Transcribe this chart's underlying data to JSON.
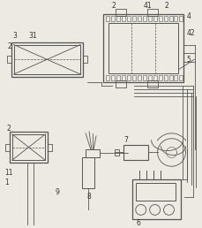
{
  "bg_color": "#ede9e3",
  "line_color": "#555555",
  "fig_width": 2.3,
  "fig_height": 2.58,
  "dpi": 100
}
